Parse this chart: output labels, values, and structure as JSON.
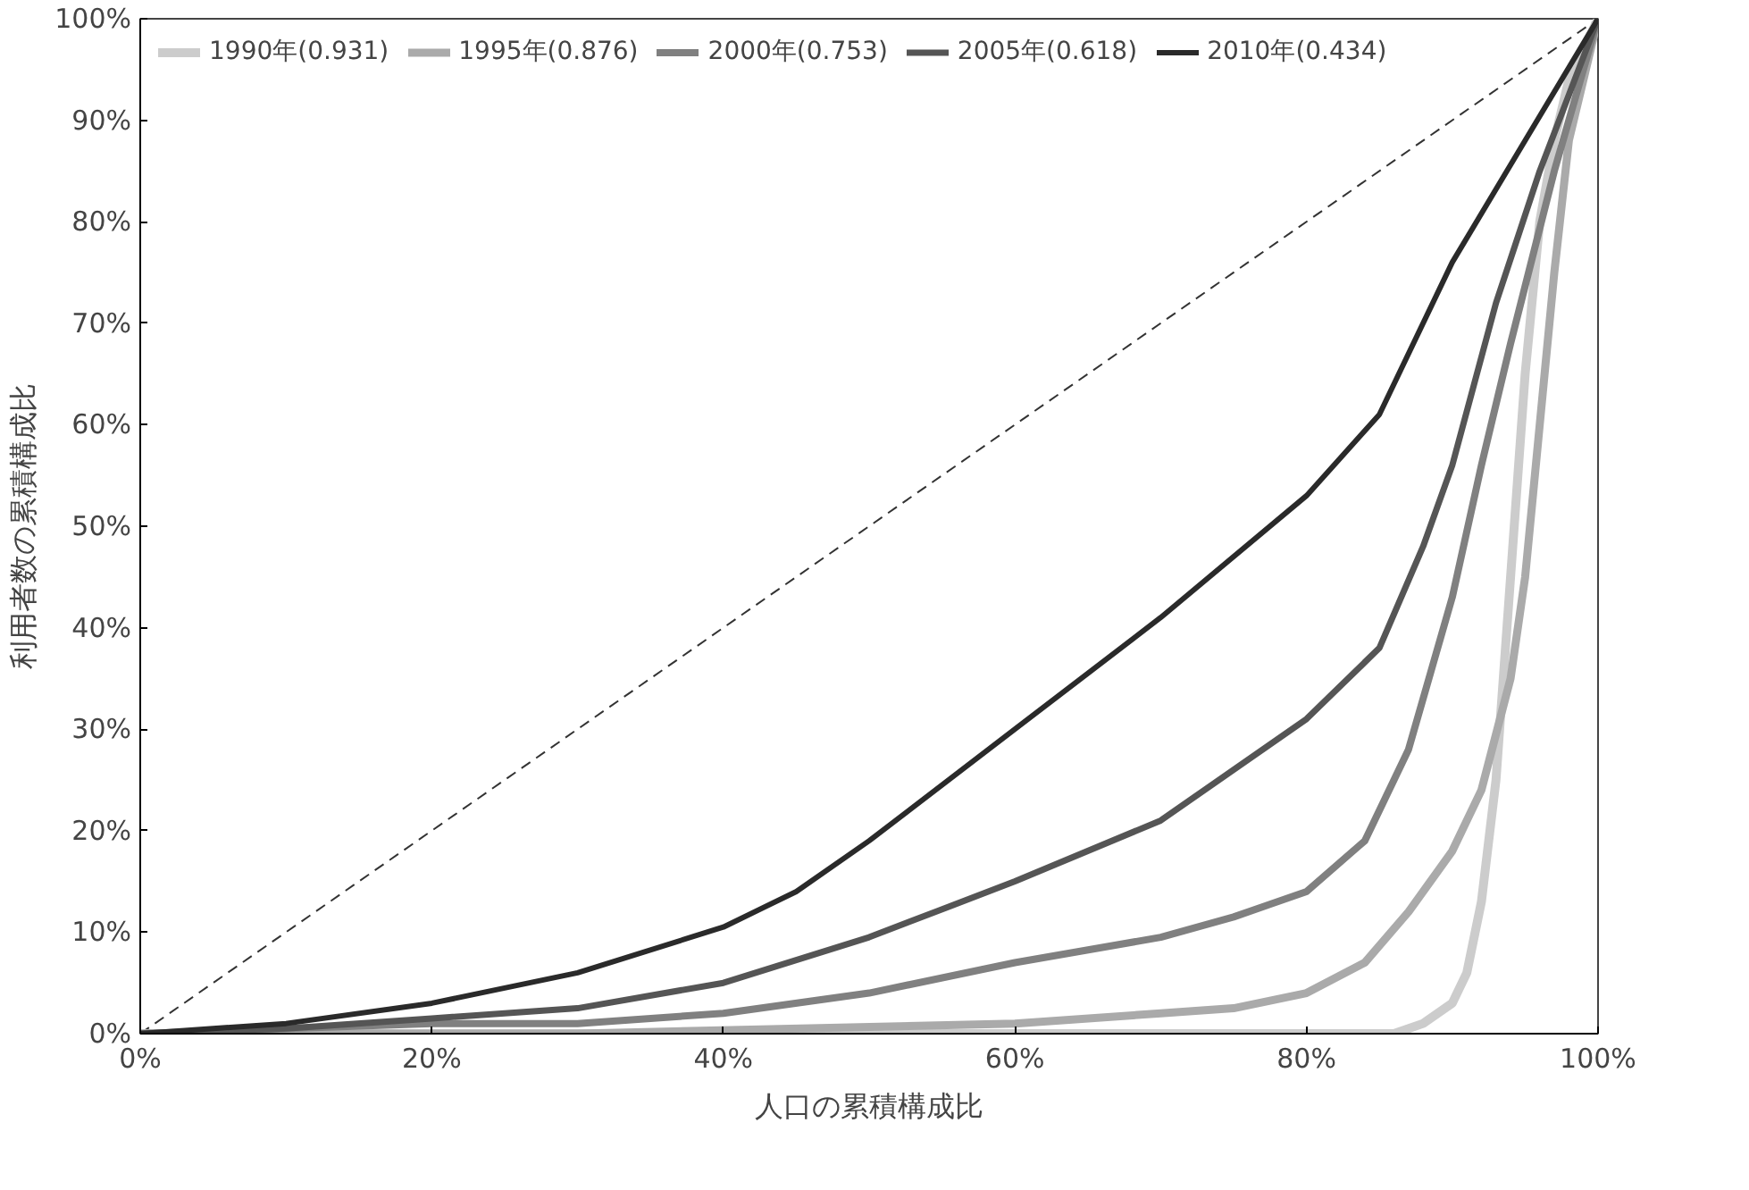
{
  "chart_data": {
    "type": "line",
    "xlabel": "人口の累積構成比",
    "ylabel": "利用者数の累積構成比",
    "legend": "top left",
    "grid": false,
    "marker": "none",
    "xlim": [
      0,
      100
    ],
    "ylim": [
      0,
      100
    ],
    "xticks": [
      {
        "value": 0,
        "label": "0%"
      },
      {
        "value": 20,
        "label": "20%"
      },
      {
        "value": 40,
        "label": "40%"
      },
      {
        "value": 60,
        "label": "60%"
      },
      {
        "value": 80,
        "label": "80%"
      },
      {
        "value": 100,
        "label": "100%"
      }
    ],
    "yticks": [
      {
        "value": 0,
        "label": "0%"
      },
      {
        "value": 10,
        "label": "10%"
      },
      {
        "value": 20,
        "label": "20%"
      },
      {
        "value": 30,
        "label": "30%"
      },
      {
        "value": 40,
        "label": "40%"
      },
      {
        "value": 50,
        "label": "50%"
      },
      {
        "value": 60,
        "label": "60%"
      },
      {
        "value": 70,
        "label": "70%"
      },
      {
        "value": 80,
        "label": "80%"
      },
      {
        "value": 90,
        "label": "90%"
      },
      {
        "value": 100,
        "label": "100%"
      }
    ],
    "series": [
      {
        "color": "#333333",
        "line_style": "dashed",
        "x": [
          0,
          100
        ],
        "values": [
          0,
          100
        ]
      },
      {
        "name": "1990年(0.931)",
        "color": "#cccccc",
        "line_style": "solid",
        "x": [
          0,
          20,
          40,
          60,
          80,
          86,
          88,
          90,
          91,
          92,
          93,
          94,
          95,
          96,
          97,
          98,
          100
        ],
        "values": [
          0,
          0,
          0,
          0,
          0,
          0,
          1,
          3,
          6,
          13,
          25,
          45,
          65,
          80,
          88,
          94,
          100
        ]
      },
      {
        "name": "1995年(0.876)",
        "color": "#aaaaaa",
        "line_style": "solid",
        "x": [
          0,
          30,
          60,
          70,
          75,
          80,
          84,
          87,
          90,
          92,
          94,
          95,
          96,
          97,
          98,
          100
        ],
        "values": [
          0,
          0,
          1,
          2,
          2.5,
          4,
          7,
          12,
          18,
          24,
          35,
          45,
          60,
          75,
          88,
          100
        ]
      },
      {
        "name": "2000年(0.753)",
        "color": "#808080",
        "line_style": "solid",
        "x": [
          0,
          20,
          30,
          40,
          50,
          60,
          70,
          75,
          80,
          84,
          87,
          90,
          92,
          94,
          97,
          100
        ],
        "values": [
          0,
          1,
          1,
          2,
          4,
          7,
          9.5,
          11.5,
          14,
          19,
          28,
          43,
          56,
          68,
          85,
          100
        ]
      },
      {
        "name": "2005年(0.618)",
        "color": "#555555",
        "line_style": "solid",
        "x": [
          0,
          10,
          20,
          30,
          40,
          50,
          60,
          70,
          75,
          80,
          85,
          88,
          90,
          93,
          96,
          100
        ],
        "values": [
          0,
          0.5,
          1.5,
          2.5,
          5,
          9.5,
          15,
          21,
          26,
          31,
          38,
          48,
          56,
          72,
          85,
          100
        ]
      },
      {
        "name": "2010年(0.434)",
        "color": "#2a2a2a",
        "line_style": "solid",
        "x": [
          0,
          10,
          20,
          30,
          40,
          45,
          50,
          60,
          70,
          80,
          85,
          90,
          95,
          100
        ],
        "values": [
          0,
          1,
          3,
          6,
          10.5,
          14,
          19,
          30,
          41,
          53,
          61,
          76,
          88,
          100
        ]
      }
    ]
  }
}
